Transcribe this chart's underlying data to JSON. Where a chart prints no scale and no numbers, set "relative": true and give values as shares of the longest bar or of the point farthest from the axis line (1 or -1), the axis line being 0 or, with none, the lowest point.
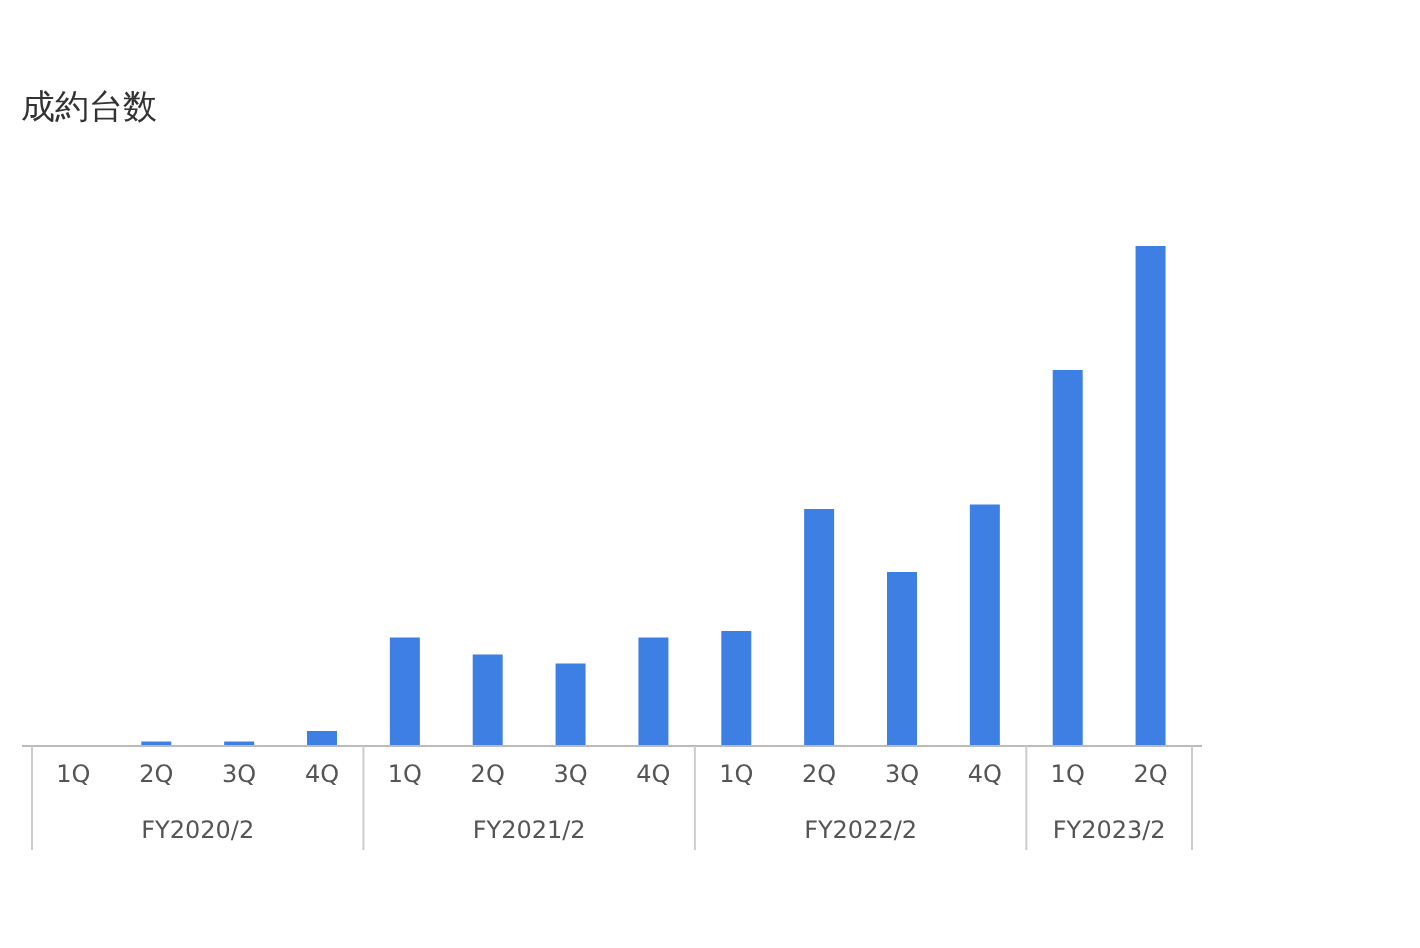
{
  "chart_data": {
    "type": "bar",
    "title": "成約台数",
    "relative": true,
    "categories": [
      "1Q",
      "2Q",
      "3Q",
      "4Q",
      "1Q",
      "2Q",
      "3Q",
      "4Q",
      "1Q",
      "2Q",
      "3Q",
      "4Q",
      "1Q",
      "2Q"
    ],
    "values": [
      0,
      0.009,
      0.009,
      0.03,
      0.217,
      0.183,
      0.165,
      0.217,
      0.23,
      0.474,
      0.348,
      0.483,
      0.752,
      1
    ],
    "color": "#3d7fe3",
    "annotations": [
      "FY2020/2",
      "FY2021/2",
      "FY2022/2",
      "FY2023/2"
    ]
  }
}
